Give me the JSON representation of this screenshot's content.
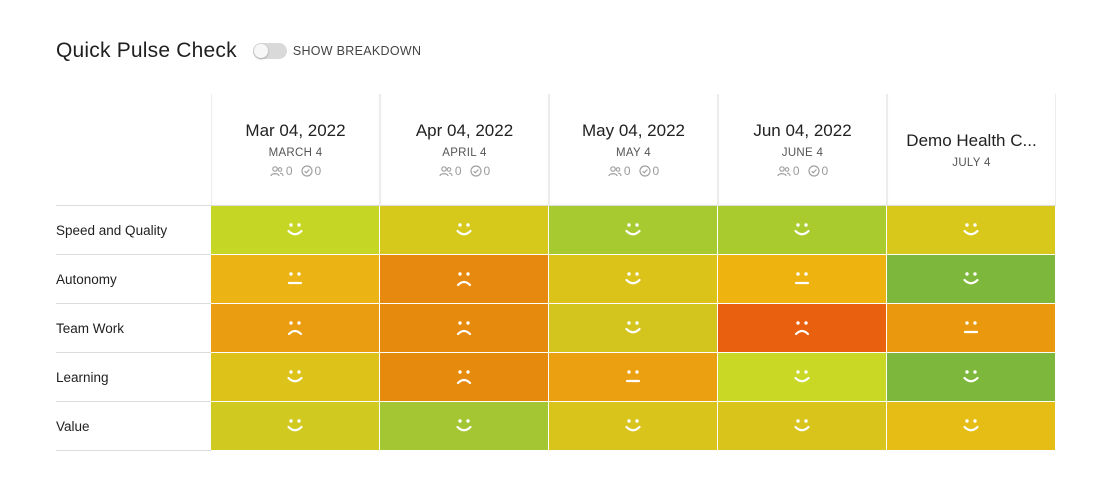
{
  "header": {
    "title": "Quick Pulse Check",
    "toggle_label": "SHOW BREAKDOWN",
    "toggle_on": false
  },
  "columns": [
    {
      "date": "Mar 04, 2022",
      "sub": "MARCH 4",
      "participants": "0",
      "responses": "0",
      "show_stats": true
    },
    {
      "date": "Apr 04, 2022",
      "sub": "APRIL 4",
      "participants": "0",
      "responses": "0",
      "show_stats": true
    },
    {
      "date": "May 04, 2022",
      "sub": "MAY 4",
      "participants": "0",
      "responses": "0",
      "show_stats": true
    },
    {
      "date": "Jun 04, 2022",
      "sub": "JUNE 4",
      "participants": "0",
      "responses": "0",
      "show_stats": true
    },
    {
      "date": "Demo Health C...",
      "sub": "JULY 4",
      "participants": "",
      "responses": "",
      "show_stats": false
    }
  ],
  "rows": [
    {
      "label": "Speed and Quality",
      "cells": [
        {
          "mood": "happy",
          "color": "#c6d624"
        },
        {
          "mood": "happy",
          "color": "#d6c91c"
        },
        {
          "mood": "happy",
          "color": "#a8ca31"
        },
        {
          "mood": "happy",
          "color": "#aacb2e"
        },
        {
          "mood": "happy",
          "color": "#d9c81c"
        }
      ]
    },
    {
      "label": "Autonomy",
      "cells": [
        {
          "mood": "neutral",
          "color": "#ebb313"
        },
        {
          "mood": "sad",
          "color": "#e6890e"
        },
        {
          "mood": "happy",
          "color": "#dbc31a"
        },
        {
          "mood": "neutral",
          "color": "#efb310"
        },
        {
          "mood": "happy",
          "color": "#7db83c"
        }
      ]
    },
    {
      "label": "Team Work",
      "cells": [
        {
          "mood": "sad",
          "color": "#ea9d10"
        },
        {
          "mood": "sad",
          "color": "#e68a0d"
        },
        {
          "mood": "happy",
          "color": "#d4c51e"
        },
        {
          "mood": "sad",
          "color": "#e9600f"
        },
        {
          "mood": "neutral",
          "color": "#ea990f"
        }
      ]
    },
    {
      "label": "Learning",
      "cells": [
        {
          "mood": "happy",
          "color": "#dcc219"
        },
        {
          "mood": "sad",
          "color": "#e68a0d"
        },
        {
          "mood": "neutral",
          "color": "#eba012"
        },
        {
          "mood": "happy",
          "color": "#c8d825"
        },
        {
          "mood": "happy",
          "color": "#7db83c"
        }
      ]
    },
    {
      "label": "Value",
      "cells": [
        {
          "mood": "happy",
          "color": "#d0c91f"
        },
        {
          "mood": "happy",
          "color": "#a4c632"
        },
        {
          "mood": "happy",
          "color": "#d8c41b"
        },
        {
          "mood": "happy",
          "color": "#d8c41b"
        },
        {
          "mood": "happy",
          "color": "#e6bd15"
        }
      ]
    }
  ]
}
